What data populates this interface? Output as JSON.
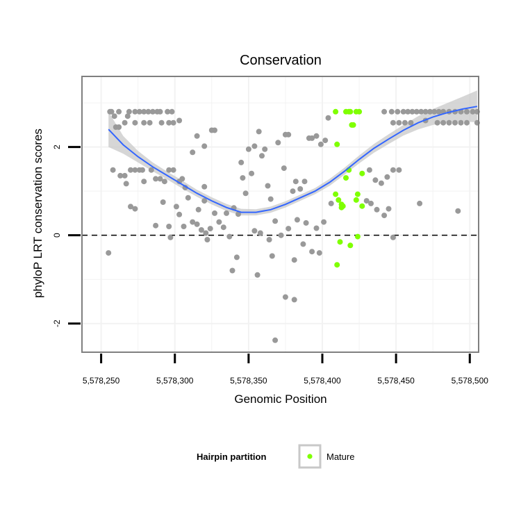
{
  "chart_data": {
    "type": "scatter",
    "title": "Conservation",
    "xlabel": "Genomic Position",
    "ylabel": "phyloP LRT conservation scores",
    "xlim": [
      5578237,
      5578506
    ],
    "ylim": [
      -2.65,
      3.6
    ],
    "x_ticks": [
      5578250,
      5578300,
      5578350,
      5578400,
      5578450,
      5578500
    ],
    "x_tick_labels": [
      "5,578,250",
      "5,578,300",
      "5,578,350",
      "5,578,400",
      "5,578,450",
      "5,578,500"
    ],
    "y_ticks": [
      -2,
      0,
      2
    ],
    "y_tick_labels": [
      "-2",
      "0",
      "2"
    ],
    "grid": true,
    "reference_line": {
      "y": 0,
      "style": "dashed"
    },
    "legend": {
      "title": "Hairpin partition",
      "placement": "bottom",
      "entries": [
        {
          "label": "Mature",
          "color": "#7FFF00"
        }
      ]
    },
    "colors": {
      "other": "#999999",
      "mature": "#7FFF00",
      "smooth": "#3366FF",
      "ribbon": "#C8C8C8",
      "panel_border": "#7F7F7F"
    },
    "series": [
      {
        "name": "Mature",
        "color": "#7FFF00",
        "points": [
          [
            5578409,
            2.8
          ],
          [
            5578416,
            2.8
          ],
          [
            5578418,
            2.8
          ],
          [
            5578419,
            2.8
          ],
          [
            5578423,
            2.8
          ],
          [
            5578425,
            2.8
          ],
          [
            5578420,
            2.5
          ],
          [
            5578421,
            2.5
          ],
          [
            5578410,
            2.06
          ],
          [
            5578418,
            1.48
          ],
          [
            5578427,
            1.4
          ],
          [
            5578416,
            1.3
          ],
          [
            5578409,
            0.93
          ],
          [
            5578424,
            0.93
          ],
          [
            5578411,
            0.8
          ],
          [
            5578423,
            0.8
          ],
          [
            5578413,
            0.7
          ],
          [
            5578413,
            0.63
          ],
          [
            5578414,
            0.66
          ],
          [
            5578427,
            0.66
          ],
          [
            5578424,
            -0.03
          ],
          [
            5578412,
            -0.15
          ],
          [
            5578419,
            -0.23
          ],
          [
            5578410,
            -0.67
          ]
        ]
      },
      {
        "name": "other",
        "color": "#999999",
        "points": [
          [
            5578256,
            2.8
          ],
          [
            5578257,
            2.8
          ],
          [
            5578262,
            2.8
          ],
          [
            5578269,
            2.8
          ],
          [
            5578273,
            2.8
          ],
          [
            5578276,
            2.8
          ],
          [
            5578279,
            2.8
          ],
          [
            5578282,
            2.8
          ],
          [
            5578285,
            2.8
          ],
          [
            5578288,
            2.8
          ],
          [
            5578290,
            2.8
          ],
          [
            5578295,
            2.8
          ],
          [
            5578298,
            2.8
          ],
          [
            5578259,
            2.7
          ],
          [
            5578268,
            2.7
          ],
          [
            5578260,
            2.45
          ],
          [
            5578262,
            2.45
          ],
          [
            5578266,
            2.55
          ],
          [
            5578273,
            2.55
          ],
          [
            5578279,
            2.55
          ],
          [
            5578283,
            2.55
          ],
          [
            5578291,
            2.55
          ],
          [
            5578296,
            2.55
          ],
          [
            5578299,
            2.55
          ],
          [
            5578303,
            2.6
          ],
          [
            5578258,
            1.48
          ],
          [
            5578263,
            1.35
          ],
          [
            5578266,
            1.35
          ],
          [
            5578270,
            1.48
          ],
          [
            5578273,
            1.48
          ],
          [
            5578276,
            1.48
          ],
          [
            5578278,
            1.48
          ],
          [
            5578267,
            1.17
          ],
          [
            5578279,
            1.22
          ],
          [
            5578284,
            1.48
          ],
          [
            5578287,
            1.28
          ],
          [
            5578290,
            1.28
          ],
          [
            5578293,
            1.22
          ],
          [
            5578296,
            1.48
          ],
          [
            5578299,
            1.48
          ],
          [
            5578303,
            1.22
          ],
          [
            5578305,
            1.28
          ],
          [
            5578270,
            0.65
          ],
          [
            5578273,
            0.6
          ],
          [
            5578287,
            0.22
          ],
          [
            5578292,
            0.75
          ],
          [
            5578296,
            0.2
          ],
          [
            5578297,
            -0.05
          ],
          [
            5578301,
            0.65
          ],
          [
            5578303,
            0.47
          ],
          [
            5578306,
            0.2
          ],
          [
            5578309,
            0.85
          ],
          [
            5578312,
            0.3
          ],
          [
            5578315,
            0.25
          ],
          [
            5578318,
            0.12
          ],
          [
            5578321,
            0.05
          ],
          [
            5578324,
            0.15
          ],
          [
            5578255,
            -0.4
          ],
          [
            5578312,
            1.88
          ],
          [
            5578315,
            2.25
          ],
          [
            5578320,
            2.02
          ],
          [
            5578325,
            2.38
          ],
          [
            5578327,
            2.38
          ],
          [
            5578320,
            1.1
          ],
          [
            5578307,
            1.08
          ],
          [
            5578316,
            0.58
          ],
          [
            5578320,
            0.78
          ],
          [
            5578322,
            -0.1
          ],
          [
            5578327,
            0.5
          ],
          [
            5578330,
            0.3
          ],
          [
            5578333,
            0.18
          ],
          [
            5578335,
            0.5
          ],
          [
            5578337,
            -0.03
          ],
          [
            5578340,
            0.62
          ],
          [
            5578343,
            0.48
          ],
          [
            5578346,
            1.3
          ],
          [
            5578345,
            1.65
          ],
          [
            5578348,
            0.95
          ],
          [
            5578350,
            1.95
          ],
          [
            5578352,
            1.4
          ],
          [
            5578354,
            2.02
          ],
          [
            5578357,
            2.35
          ],
          [
            5578359,
            1.8
          ],
          [
            5578361,
            1.95
          ],
          [
            5578363,
            1.12
          ],
          [
            5578365,
            0.82
          ],
          [
            5578368,
            0.32
          ],
          [
            5578370,
            2.1
          ],
          [
            5578374,
            1.52
          ],
          [
            5578375,
            2.28
          ],
          [
            5578377,
            2.28
          ],
          [
            5578380,
            1.0
          ],
          [
            5578382,
            1.22
          ],
          [
            5578385,
            1.05
          ],
          [
            5578388,
            1.22
          ],
          [
            5578391,
            2.2
          ],
          [
            5578393,
            2.2
          ],
          [
            5578396,
            2.25
          ],
          [
            5578399,
            2.06
          ],
          [
            5578402,
            2.15
          ],
          [
            5578404,
            2.66
          ],
          [
            5578339,
            -0.8
          ],
          [
            5578342,
            -0.5
          ],
          [
            5578356,
            -0.9
          ],
          [
            5578366,
            -0.47
          ],
          [
            5578375,
            -1.4
          ],
          [
            5578381,
            -1.46
          ],
          [
            5578368,
            -2.38
          ],
          [
            5578381,
            -0.56
          ],
          [
            5578387,
            -0.2
          ],
          [
            5578393,
            -0.37
          ],
          [
            5578398,
            -0.4
          ],
          [
            5578354,
            0.1
          ],
          [
            5578358,
            0.05
          ],
          [
            5578364,
            -0.1
          ],
          [
            5578372,
            0.0
          ],
          [
            5578377,
            0.15
          ],
          [
            5578383,
            0.35
          ],
          [
            5578389,
            0.28
          ],
          [
            5578396,
            0.16
          ],
          [
            5578401,
            0.3
          ],
          [
            5578406,
            0.72
          ],
          [
            5578430,
            0.78
          ],
          [
            5578433,
            0.72
          ],
          [
            5578437,
            0.58
          ],
          [
            5578440,
            1.18
          ],
          [
            5578444,
            1.32
          ],
          [
            5578448,
            1.48
          ],
          [
            5578452,
            1.48
          ],
          [
            5578442,
            0.45
          ],
          [
            5578445,
            0.6
          ],
          [
            5578448,
            -0.05
          ],
          [
            5578466,
            0.72
          ],
          [
            5578492,
            0.55
          ],
          [
            5578432,
            1.48
          ],
          [
            5578436,
            1.25
          ],
          [
            5578442,
            2.8
          ],
          [
            5578447,
            2.8
          ],
          [
            5578451,
            2.8
          ],
          [
            5578455,
            2.8
          ],
          [
            5578458,
            2.8
          ],
          [
            5578461,
            2.8
          ],
          [
            5578464,
            2.8
          ],
          [
            5578467,
            2.8
          ],
          [
            5578470,
            2.8
          ],
          [
            5578473,
            2.8
          ],
          [
            5578476,
            2.8
          ],
          [
            5578479,
            2.8
          ],
          [
            5578482,
            2.8
          ],
          [
            5578486,
            2.8
          ],
          [
            5578490,
            2.8
          ],
          [
            5578494,
            2.8
          ],
          [
            5578498,
            2.8
          ],
          [
            5578502,
            2.8
          ],
          [
            5578505,
            2.8
          ],
          [
            5578448,
            2.55
          ],
          [
            5578452,
            2.55
          ],
          [
            5578456,
            2.55
          ],
          [
            5578460,
            2.55
          ],
          [
            5578470,
            2.6
          ],
          [
            5578478,
            2.55
          ],
          [
            5578482,
            2.55
          ],
          [
            5578486,
            2.55
          ],
          [
            5578490,
            2.55
          ],
          [
            5578494,
            2.55
          ],
          [
            5578498,
            2.55
          ],
          [
            5578505,
            2.55
          ]
        ]
      }
    ],
    "smooth": {
      "x": [
        5578255,
        5578265,
        5578275,
        5578285,
        5578295,
        5578305,
        5578315,
        5578325,
        5578335,
        5578345,
        5578355,
        5578365,
        5578375,
        5578385,
        5578395,
        5578405,
        5578415,
        5578425,
        5578435,
        5578445,
        5578455,
        5578465,
        5578475,
        5578485,
        5578495,
        5578505
      ],
      "y": [
        2.4,
        2.05,
        1.78,
        1.55,
        1.35,
        1.15,
        0.95,
        0.78,
        0.63,
        0.52,
        0.52,
        0.58,
        0.7,
        0.85,
        1.0,
        1.2,
        1.45,
        1.72,
        1.97,
        2.18,
        2.38,
        2.55,
        2.68,
        2.78,
        2.86,
        2.92
      ],
      "lower": [
        2.0,
        1.85,
        1.65,
        1.45,
        1.26,
        1.06,
        0.87,
        0.7,
        0.55,
        0.45,
        0.45,
        0.51,
        0.63,
        0.78,
        0.93,
        1.12,
        1.37,
        1.63,
        1.87,
        2.07,
        2.26,
        2.4,
        2.5,
        2.56,
        2.58,
        2.56
      ],
      "upper": [
        2.8,
        2.25,
        1.91,
        1.65,
        1.44,
        1.24,
        1.03,
        0.86,
        0.71,
        0.6,
        0.59,
        0.65,
        0.77,
        0.92,
        1.07,
        1.28,
        1.53,
        1.81,
        2.07,
        2.29,
        2.5,
        2.7,
        2.86,
        3.0,
        3.14,
        3.28
      ]
    }
  }
}
